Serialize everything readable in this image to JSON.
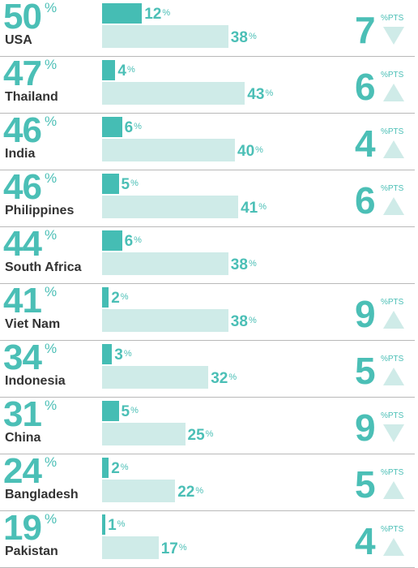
{
  "chart_data": {
    "type": "bar",
    "unit": "%",
    "change_unit": "%PTS",
    "categories": [
      "USA",
      "Thailand",
      "India",
      "Philippines",
      "South Africa",
      "Viet Nam",
      "Indonesia",
      "China",
      "Bangladesh",
      "Pakistan"
    ],
    "totals": [
      50,
      47,
      46,
      46,
      44,
      41,
      34,
      31,
      24,
      19
    ],
    "series": [
      {
        "values": [
          12,
          4,
          6,
          5,
          6,
          2,
          3,
          5,
          2,
          1
        ]
      },
      {
        "values": [
          38,
          43,
          40,
          41,
          38,
          38,
          32,
          25,
          22,
          17
        ]
      }
    ],
    "change": [
      {
        "value": 7,
        "direction": "down"
      },
      {
        "value": 6,
        "direction": "up"
      },
      {
        "value": 4,
        "direction": "up"
      },
      {
        "value": 6,
        "direction": "up"
      },
      null,
      {
        "value": 9,
        "direction": "up"
      },
      {
        "value": 5,
        "direction": "up"
      },
      {
        "value": 9,
        "direction": "down"
      },
      {
        "value": 5,
        "direction": "up"
      },
      {
        "value": 4,
        "direction": "up"
      }
    ],
    "colors": {
      "primary": "#45bdb4",
      "secondary": "#cfebe8",
      "text": "#333333"
    }
  }
}
